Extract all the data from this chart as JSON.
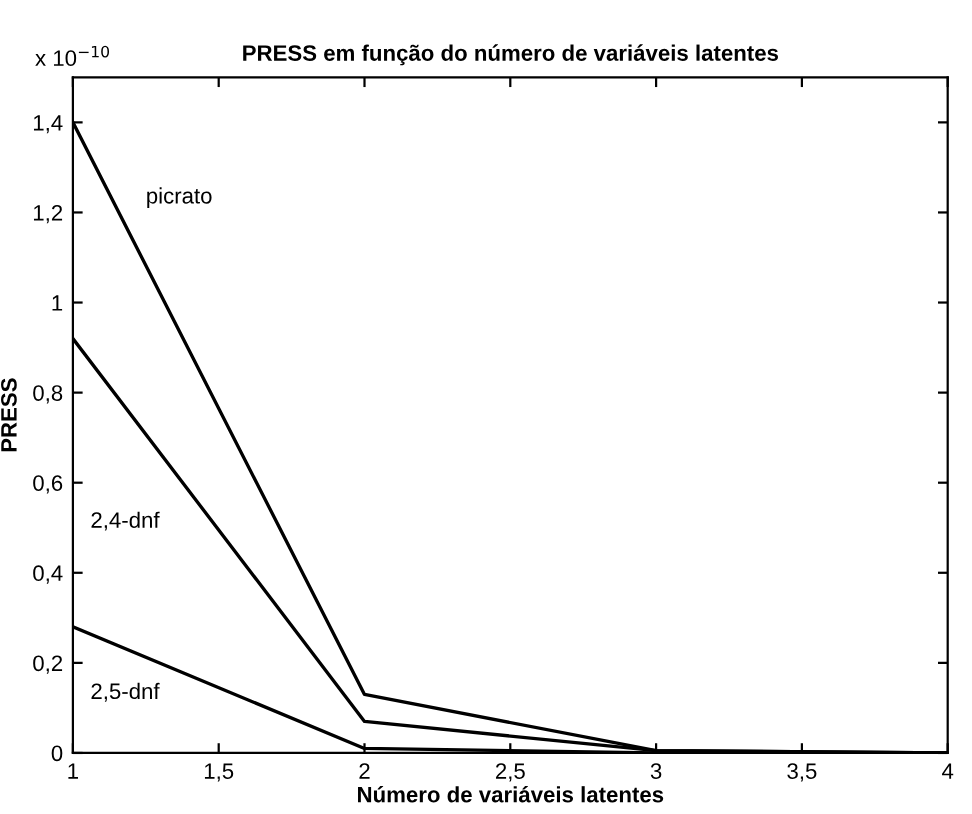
{
  "chart_data": {
    "type": "line",
    "title": "PRESS em função do número de variáveis latentes",
    "xlabel": "Número de variáveis latentes",
    "ylabel": "PRESS",
    "annotations": [
      "x 10$^{−10}$"
    ],
    "x": [
      1,
      2,
      3,
      4
    ],
    "series": [
      {
        "name": "picrato",
        "color": "#000000",
        "values": [
          1.4,
          0.13,
          0.005,
          0.0
        ]
      },
      {
        "name": "2,4-dnf",
        "color": "#000000",
        "values": [
          0.92,
          0.07,
          0.005,
          0.0
        ]
      },
      {
        "name": "2,5-dnf",
        "color": "#000000",
        "values": [
          0.28,
          0.01,
          0.0,
          0.0
        ]
      }
    ],
    "xlim": [
      1,
      4
    ],
    "ylim": [
      0,
      1.5
    ],
    "xticks": [
      1,
      {
        "value": 1.5,
        "label": "1,5"
      },
      2,
      {
        "value": 2.5,
        "label": "2,5"
      },
      3,
      {
        "value": 3.5,
        "label": "3,5"
      },
      4
    ],
    "yticks": [
      0,
      {
        "value": 0.2,
        "label": "0,2"
      },
      {
        "value": 0.4,
        "label": "0,4"
      },
      {
        "value": 0.6,
        "label": "0,6"
      },
      {
        "value": 0.8,
        "label": "0,8"
      },
      1,
      {
        "value": 1.2,
        "label": "1,2"
      },
      {
        "value": 1.4,
        "label": "1,4"
      }
    ],
    "grid": false,
    "legend": false,
    "marker": "none",
    "line_style": "solid"
  }
}
